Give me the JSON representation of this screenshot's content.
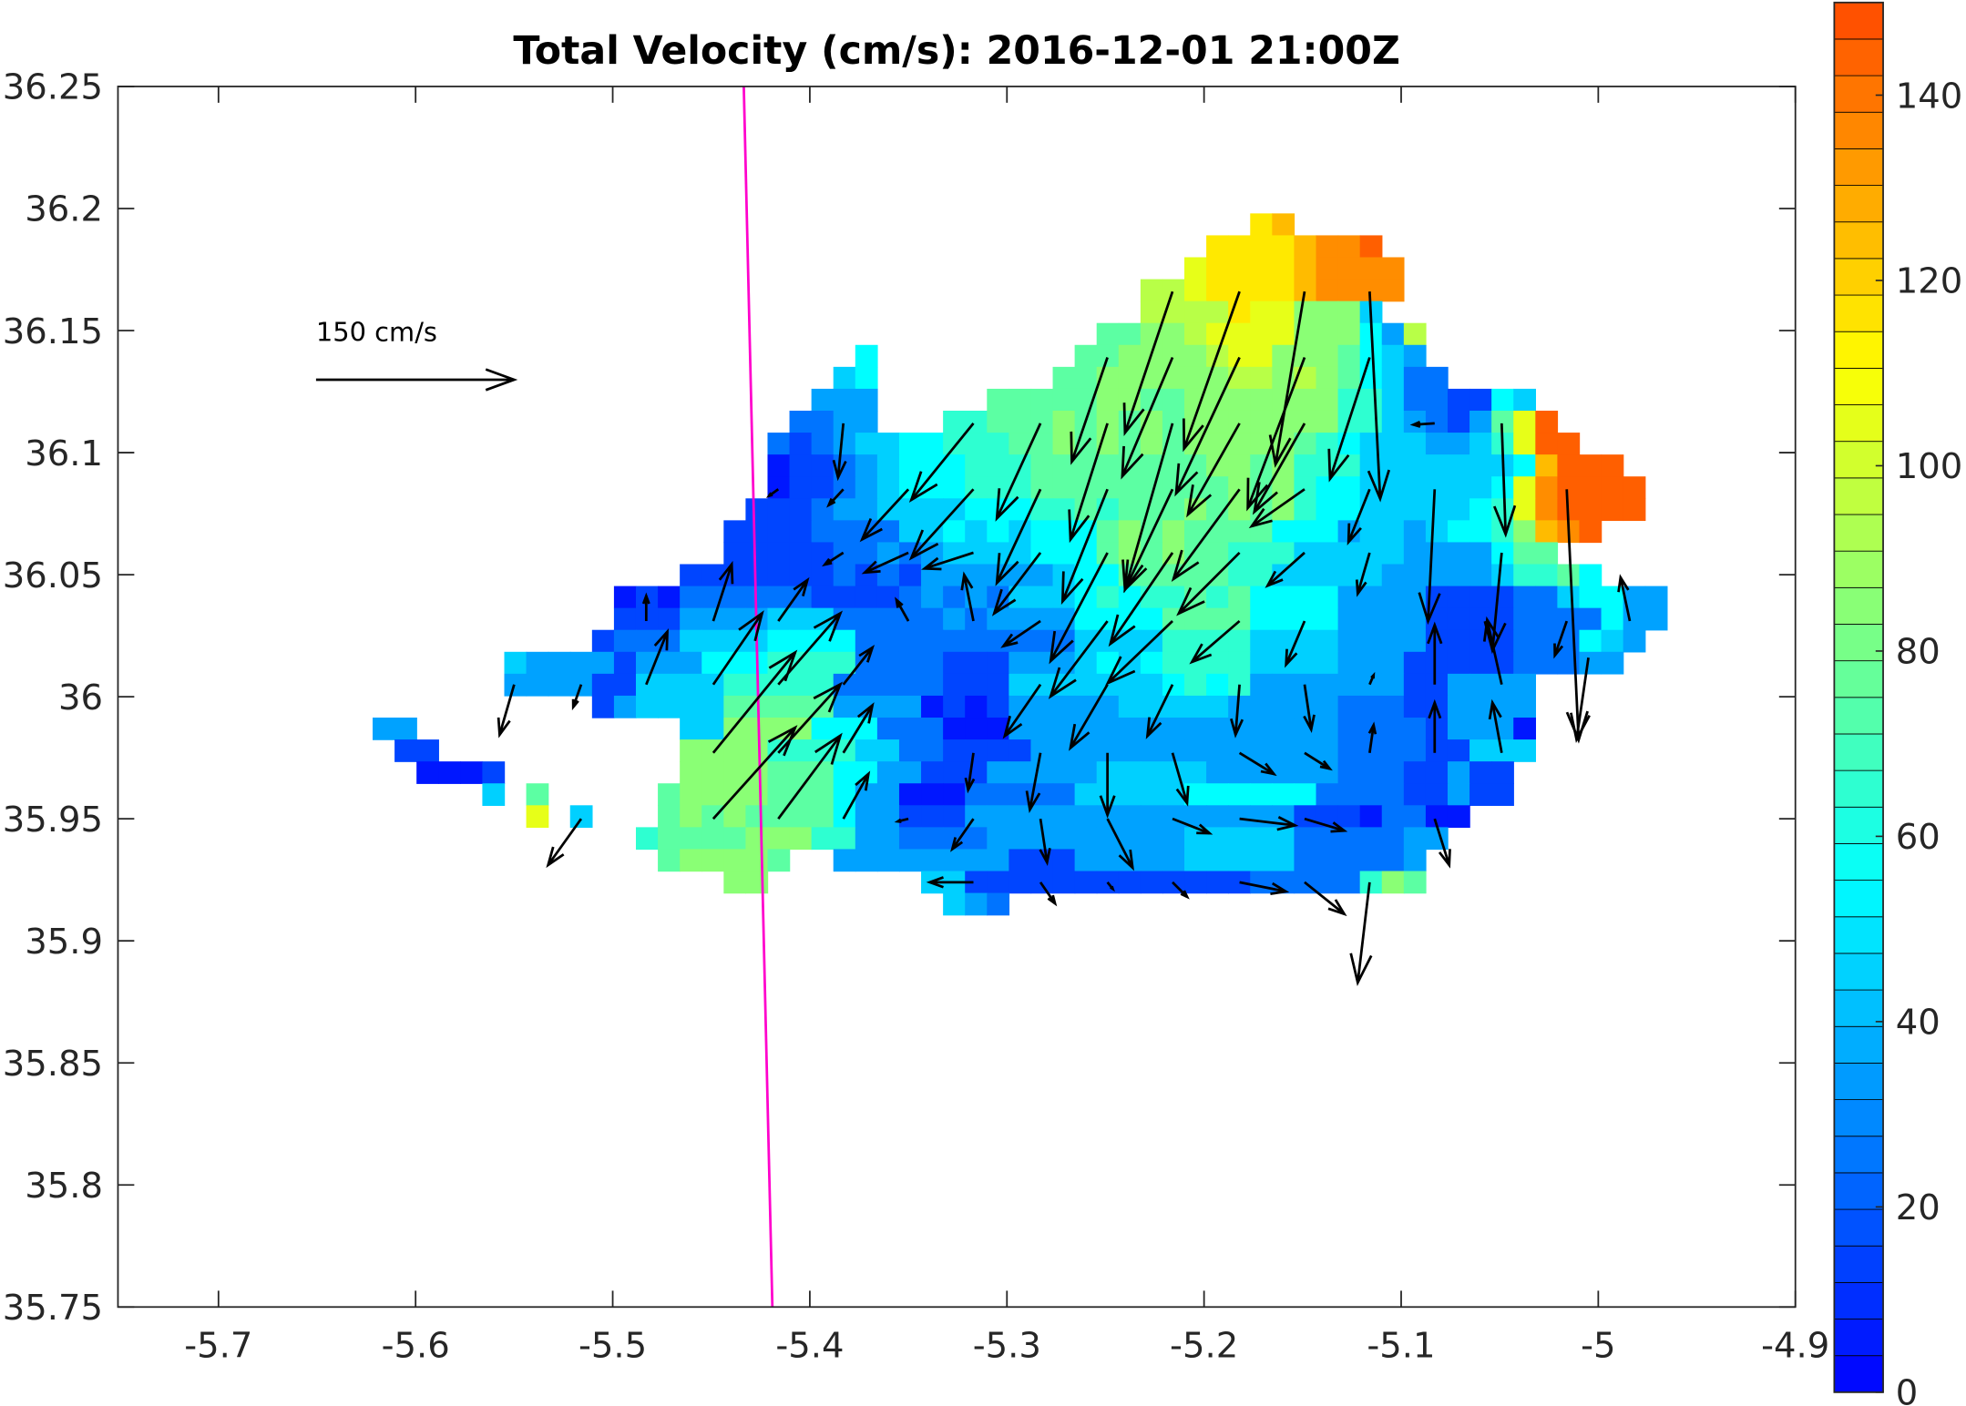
{
  "chart_data": {
    "type": "heatmap",
    "title": "Total Velocity (cm/s): 2016-12-01 21:00Z",
    "xlabel": "",
    "ylabel": "",
    "xlim": [
      -5.751,
      -4.9
    ],
    "ylim": [
      35.75,
      36.25
    ],
    "xticks": [
      -5.7,
      -5.6,
      -5.5,
      -5.4,
      -5.3,
      -5.2,
      -5.1,
      -5,
      -4.9
    ],
    "xtick_labels": [
      "-5.7",
      "-5.6",
      "-5.5",
      "-5.4",
      "-5.3",
      "-5.2",
      "-5.1",
      "-5",
      "-4.9"
    ],
    "yticks": [
      36.25,
      36.2,
      36.15,
      36.1,
      36.05,
      36,
      35.95,
      35.9,
      35.85,
      35.8,
      35.75
    ],
    "ytick_labels": [
      "36.25",
      "36.2",
      "36.15",
      "36.1",
      "36.05",
      "36",
      "35.95",
      "35.9",
      "35.85",
      "35.8",
      "35.75"
    ],
    "grid": false,
    "colorbar": {
      "range": [
        0,
        150
      ],
      "ticks": [
        0,
        20,
        40,
        60,
        80,
        100,
        120,
        140
      ],
      "tick_labels": [
        "0",
        "20",
        "40",
        "60",
        "80",
        "100",
        "120",
        "140"
      ],
      "bands": 38,
      "position": "right",
      "colormap": "jet"
    },
    "speed_grid": {
      "encoding": "hex digit x 10 + 5 = speed cm/s",
      "lon0": -5.6218,
      "lat_top": 36.198,
      "dlon": 0.01113,
      "dlat": 0.00898,
      "rows": [
        [
          [
            40,
            "BC"
          ]
        ],
        [
          [
            38,
            "BBBBCDDE"
          ]
        ],
        [
          [
            37,
            "ABBBBCDDDD"
          ]
        ],
        [
          [
            35,
            "99ABBBBCDDDD"
          ]
        ],
        [
          [
            35,
            "9999BAA8884"
          ]
        ],
        [
          [
            33,
            "77889AAAA888539"
          ]
        ],
        [
          [
            22,
            "5"
          ],
          [
            32,
            "7788889AA8887543"
          ]
        ],
        [
          [
            21,
            "45"
          ],
          [
            31,
            "778888889989875422"
          ]
        ],
        [
          [
            20,
            "333"
          ],
          [
            28,
            "7777788778888888664221154"
          ]
        ],
        [
          [
            19,
            "2233"
          ],
          [
            26,
            "6677787878788888886643213 7AE"
          ]
        ],
        [
          [
            18,
            "2123445566677878787888887654443346AEE"
          ]
        ],
        [
          [
            18,
            "01123455566677777777887866644444445CEEE"
          ]
        ],
        [
          [
            18,
            "0112345556667777777778786554444445ADEEEE"
          ]
        ],
        [
          [
            17,
            "11123344445556676777878786554444456ADEEEE"
          ]
        ],
        [
          [
            16,
            "1111222244545455578787777555344345568CDE"
          ]
        ],
        [
          [
            16,
            "11111223234444555787877666444443333577"
          ]
        ],
        [
          [
            14,
            "111111121213333334557777766444443333346675"
          ]
        ],
        [
          [
            11,
            "010222222111123232444565667675555333311112245533"
          ]
        ],
        [
          [
            11,
            "111333344422222323333555577775555333311112222533"
          ]
        ],
        [
          [
            10,
            "122244445555222222222244446666444433331111222543"
          ]
        ],
        [
          [
            6,
            "433331333555666622221113334545666644443331111122233"
          ]
        ],
        [
          [
            6,
            "33331144446666622222111444444456563333333113333"
          ]
        ],
        [
          [
            10,
            "1344447777733330101333334444433333222113333"
          ]
        ],
        [
          [
            0,
            "33"
          ],
          [
            14,
            "448888555222000333333333333333222213330"
          ]
        ],
        [
          [
            1,
            "11"
          ],
          [
            14,
            "888866664422111133333333333333222211444"
          ]
        ],
        [
          [
            2,
            "0001"
          ],
          [
            14,
            "88887775533111333334444433333322211311"
          ]
        ],
        [
          [
            5,
            "4"
          ],
          [
            7,
            "7"
          ],
          [
            13,
            "788887775330002222244444555555222211311"
          ]
        ],
        [
          [
            7,
            "A"
          ],
          [
            9,
            "4"
          ],
          [
            13,
            "787877775331113333333333333331110 2200"
          ]
        ],
        [
          [
            12,
            "6777788866332222333333333444442222233"
          ]
        ],
        [
          [
            13,
            "788887"
          ],
          [
            21,
            "333333331113333344444222223"
          ]
        ],
        [
          [
            16,
            "88"
          ],
          [
            25,
            "44111111111111122222"
          ],
          [
            45,
            "687"
          ]
        ],
        [
          [
            26,
            "432"
          ]
        ]
      ]
    },
    "vectors": {
      "units": "cm/s",
      "fields": [
        "lon",
        "lat",
        "u",
        "v"
      ],
      "data": [
        [
          -5.216,
          36.166,
          -36,
          -107
        ],
        [
          -5.182,
          36.166,
          -42,
          -119
        ],
        [
          -5.149,
          36.166,
          -22,
          -131
        ],
        [
          -5.116,
          36.166,
          8,
          -157
        ],
        [
          -5.249,
          36.139,
          -27,
          -79
        ],
        [
          -5.216,
          36.139,
          -38,
          -90
        ],
        [
          -5.182,
          36.139,
          -48,
          -103
        ],
        [
          -5.149,
          36.139,
          -43,
          -114
        ],
        [
          -5.116,
          36.139,
          -30,
          -92
        ],
        [
          -5.317,
          36.112,
          -47,
          -58
        ],
        [
          -5.283,
          36.112,
          -33,
          -72
        ],
        [
          -5.249,
          36.112,
          -28,
          -88
        ],
        [
          -5.216,
          36.112,
          -36,
          -126
        ],
        [
          -5.182,
          36.112,
          -39,
          -69
        ],
        [
          -5.149,
          36.112,
          -38,
          -67
        ],
        [
          -5.383,
          36.112,
          -4,
          -41
        ],
        [
          -5.083,
          36.112,
          -16,
          -1
        ],
        [
          -5.049,
          36.112,
          3,
          -84
        ],
        [
          -5.317,
          36.085,
          -47,
          -52
        ],
        [
          -5.283,
          36.085,
          -33,
          -71
        ],
        [
          -5.249,
          36.085,
          -34,
          -85
        ],
        [
          -5.216,
          36.085,
          -36,
          -76
        ],
        [
          -5.182,
          36.085,
          -50,
          -68
        ],
        [
          -5.149,
          36.085,
          -40,
          -28
        ],
        [
          -5.116,
          36.085,
          -16,
          -40
        ],
        [
          -5.083,
          36.085,
          -5,
          -100
        ],
        [
          -5.016,
          36.085,
          9,
          -190
        ],
        [
          -5.35,
          36.085,
          -35,
          -38
        ],
        [
          -5.383,
          36.085,
          -11,
          -12
        ],
        [
          -5.416,
          36.085,
          -7,
          -5
        ],
        [
          -5.317,
          36.059,
          -37,
          -12
        ],
        [
          -5.35,
          36.059,
          -33,
          -15
        ],
        [
          -5.383,
          36.059,
          -14,
          -9
        ],
        [
          -5.283,
          36.059,
          -35,
          -46
        ],
        [
          -5.249,
          36.059,
          -43,
          -82
        ],
        [
          -5.216,
          36.059,
          -47,
          -69
        ],
        [
          -5.182,
          36.059,
          -46,
          -46
        ],
        [
          -5.149,
          36.059,
          -28,
          -25
        ],
        [
          -5.116,
          36.059,
          -9,
          -31
        ],
        [
          -5.049,
          36.059,
          -7,
          -74
        ],
        [
          -5.449,
          36.031,
          14,
          43
        ],
        [
          -5.416,
          36.031,
          22,
          31
        ],
        [
          -5.483,
          36.031,
          0,
          19
        ],
        [
          -5.35,
          36.031,
          -9,
          16
        ],
        [
          -5.317,
          36.031,
          -7,
          35
        ],
        [
          -5.283,
          36.031,
          -28,
          -19
        ],
        [
          -5.249,
          36.031,
          -43,
          -57
        ],
        [
          -5.216,
          36.031,
          -49,
          -47
        ],
        [
          -5.182,
          36.031,
          -36,
          -31
        ],
        [
          -5.149,
          36.031,
          -14,
          -33
        ],
        [
          -4.984,
          36.031,
          -7,
          33
        ],
        [
          -5.016,
          36.031,
          -9,
          -26
        ],
        [
          -5.083,
          36.005,
          0,
          45
        ],
        [
          -5.049,
          36.005,
          -11,
          49
        ],
        [
          -5.449,
          36.005,
          37,
          54
        ],
        [
          -5.483,
          36.005,
          16,
          40
        ],
        [
          -5.416,
          36.005,
          47,
          54
        ],
        [
          -5.383,
          36.005,
          22,
          28
        ],
        [
          -5.216,
          36.005,
          -19,
          -39
        ],
        [
          -5.249,
          36.005,
          -28,
          -48
        ],
        [
          -5.283,
          36.005,
          -27,
          -39
        ],
        [
          -5.182,
          36.005,
          -3,
          -38
        ],
        [
          -5.149,
          36.005,
          5,
          -34
        ],
        [
          -5.116,
          36.005,
          3,
          7
        ],
        [
          -5.55,
          36.005,
          -11,
          -38
        ],
        [
          -5.516,
          36.005,
          -6,
          -17
        ],
        [
          -5.005,
          36.016,
          -9,
          -62
        ],
        [
          -5.449,
          35.977,
          62,
          76
        ],
        [
          -5.416,
          35.977,
          47,
          52
        ],
        [
          -5.383,
          35.977,
          22,
          36
        ],
        [
          -5.317,
          35.977,
          -4,
          -28
        ],
        [
          -5.283,
          35.977,
          -8,
          -43
        ],
        [
          -5.249,
          35.977,
          0,
          -47
        ],
        [
          -5.216,
          35.977,
          11,
          -38
        ],
        [
          -5.182,
          35.977,
          26,
          -16
        ],
        [
          -5.149,
          35.977,
          19,
          -12
        ],
        [
          -5.116,
          35.977,
          3,
          21
        ],
        [
          -5.083,
          35.977,
          0,
          38
        ],
        [
          -5.049,
          35.977,
          -7,
          38
        ],
        [
          -5.449,
          35.95,
          62,
          69
        ],
        [
          -5.416,
          35.95,
          47,
          63
        ],
        [
          -5.383,
          35.95,
          19,
          34
        ],
        [
          -5.35,
          35.95,
          -8,
          -2
        ],
        [
          -5.317,
          35.95,
          -16,
          -23
        ],
        [
          -5.283,
          35.95,
          5,
          -33
        ],
        [
          -5.249,
          35.95,
          19,
          -37
        ],
        [
          -5.216,
          35.95,
          28,
          -11
        ],
        [
          -5.182,
          35.95,
          42,
          -5
        ],
        [
          -5.149,
          35.95,
          30,
          -9
        ],
        [
          -5.083,
          35.95,
          11,
          -35
        ],
        [
          -5.516,
          35.95,
          -25,
          -35
        ],
        [
          -5.317,
          35.924,
          -33,
          0
        ],
        [
          -5.283,
          35.924,
          11,
          -16
        ],
        [
          -5.249,
          35.924,
          4,
          -5
        ],
        [
          -5.216,
          35.924,
          11,
          -11
        ],
        [
          -5.182,
          35.924,
          35,
          -7
        ],
        [
          -5.149,
          35.924,
          30,
          -24
        ],
        [
          -5.116,
          35.924,
          -9,
          -76
        ]
      ]
    },
    "reference_vector": {
      "label": "150 cm/s",
      "u": 150,
      "v": 0,
      "lon": -5.65,
      "lat": 36.13
    },
    "lines": [
      {
        "name": "boundary-line",
        "color": "#ff00cc",
        "lon": [
          -5.4335,
          -5.419
        ],
        "lat": [
          36.25,
          35.75
        ]
      }
    ]
  }
}
